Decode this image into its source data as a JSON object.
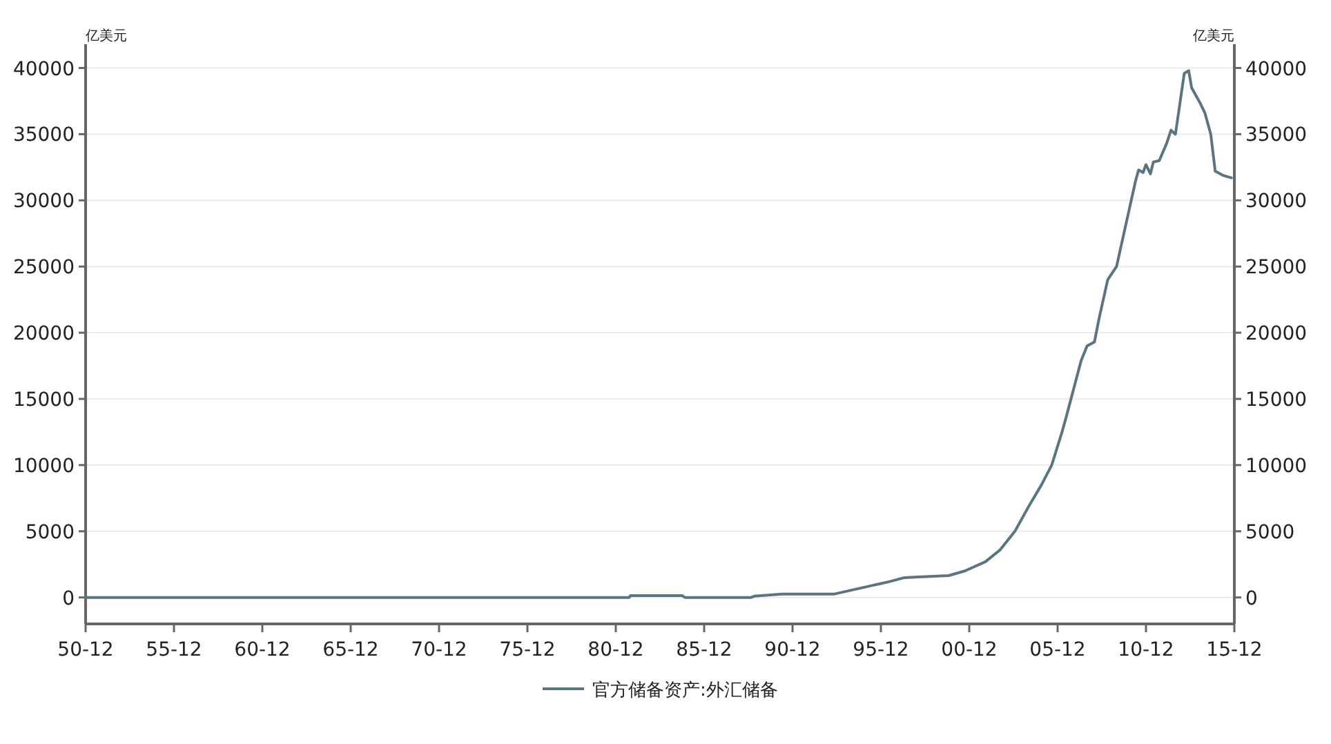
{
  "chart_data": {
    "type": "line",
    "ylabel": "亿美元",
    "y2label": "亿美元",
    "xlim": [
      "1950-12",
      "2015-12"
    ],
    "xticks": [
      {
        "value": "1950-12",
        "label": "50-12"
      },
      {
        "value": "1955-12",
        "label": "55-12"
      },
      {
        "value": "1960-12",
        "label": "60-12"
      },
      {
        "value": "1965-12",
        "label": "65-12"
      },
      {
        "value": "1970-12",
        "label": "70-12"
      },
      {
        "value": "1975-12",
        "label": "75-12"
      },
      {
        "value": "1980-12",
        "label": "80-12"
      },
      {
        "value": "1985-12",
        "label": "85-12"
      },
      {
        "value": "1990-12",
        "label": "90-12"
      },
      {
        "value": "1995-12",
        "label": "95-12"
      },
      {
        "value": "2000-12",
        "label": "00-12"
      },
      {
        "value": "2005-12",
        "label": "05-12"
      },
      {
        "value": "2010-12",
        "label": "10-12"
      },
      {
        "value": "2015-12",
        "label": "15-12"
      }
    ],
    "ylim": [
      -2000,
      41800
    ],
    "yticks": [
      0,
      5000,
      10000,
      15000,
      20000,
      25000,
      30000,
      35000,
      40000
    ],
    "y2lim": [
      -2000,
      41800
    ],
    "y2ticks": [
      0,
      5000,
      10000,
      15000,
      20000,
      25000,
      30000,
      35000,
      40000
    ],
    "grid": "y",
    "legend": "bottom",
    "marker": "none",
    "line_style": "solid",
    "x": [
      "1950-12",
      "1981-09",
      "1981-10",
      "1984-09",
      "1984-11",
      "1988-08",
      "1988-10",
      "1990-05",
      "1993-04",
      "1994-06",
      "1995-06",
      "1996-06",
      "1997-04",
      "1998-01",
      "1999-10",
      "2000-09",
      "2001-11",
      "2002-09",
      "2003-07",
      "2004-05",
      "2005-01",
      "2005-08",
      "2006-03",
      "2006-06",
      "2007-04",
      "2007-08",
      "2008-01",
      "2008-04",
      "2008-10",
      "2009-04",
      "2009-07",
      "2010-05",
      "2010-07",
      "2010-10",
      "2010-12",
      "2011-03",
      "2011-05",
      "2011-09",
      "2012-02",
      "2012-05",
      "2012-08",
      "2013-02",
      "2013-05",
      "2013-07",
      "2014-01",
      "2014-04",
      "2014-08",
      "2014-11",
      "2015-04",
      "2015-10"
    ],
    "series": [
      {
        "name": "官方储备资产:外汇储备",
        "color": "#5a7582",
        "values": [
          0,
          0,
          140,
          140,
          0,
          0,
          100,
          250,
          250,
          600,
          900,
          1200,
          1500,
          1550,
          1650,
          2000,
          2700,
          3600,
          5000,
          7000,
          8500,
          10000,
          12500,
          13700,
          17900,
          19000,
          19300,
          21000,
          24000,
          25000,
          26500,
          31500,
          32300,
          32100,
          32700,
          32000,
          32900,
          33000,
          34300,
          35300,
          35000,
          39600,
          39800,
          38500,
          37300,
          36600,
          35000,
          32200,
          31900,
          31700
        ]
      }
    ]
  }
}
